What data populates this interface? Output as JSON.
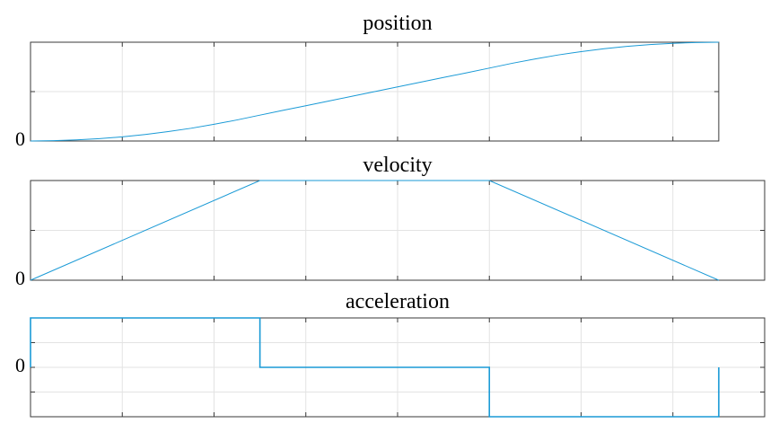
{
  "colors": {
    "line": "#1a9ad6",
    "frame": "#3a3a3a",
    "grid": "#e3e3e3"
  },
  "chart_data": [
    {
      "type": "line",
      "title": "position",
      "xlim": [
        0,
        7.5
      ],
      "ylim": [
        0,
        1
      ],
      "xticks": [
        1,
        2,
        3,
        4,
        5,
        6,
        7
      ],
      "yticks": [
        0,
        0.5,
        1
      ],
      "ytick_labels": [
        {
          "value": 0,
          "label": "0"
        }
      ],
      "grid": true,
      "series": [
        {
          "x": [
            0,
            0.25,
            0.5,
            0.75,
            1,
            1.25,
            1.5,
            1.75,
            2,
            2.25,
            2.5,
            2.75,
            3,
            3.25,
            3.5,
            3.75,
            4,
            4.25,
            4.5,
            4.75,
            5,
            5.25,
            5.5,
            5.75,
            6,
            6.25,
            6.5,
            6.75,
            7,
            7.25,
            7.5
          ],
          "y": [
            0,
            0.003,
            0.011,
            0.024,
            0.042,
            0.066,
            0.095,
            0.129,
            0.169,
            0.213,
            0.262,
            0.31,
            0.357,
            0.405,
            0.452,
            0.5,
            0.548,
            0.595,
            0.643,
            0.69,
            0.738,
            0.787,
            0.831,
            0.871,
            0.905,
            0.934,
            0.958,
            0.976,
            0.989,
            0.997,
            1.0
          ]
        }
      ]
    },
    {
      "type": "line",
      "title": "velocity",
      "xlim": [
        0,
        8
      ],
      "ylim": [
        0,
        1
      ],
      "xticks": [
        1,
        2,
        3,
        4,
        5,
        6,
        7
      ],
      "yticks": [
        0,
        0.5,
        1
      ],
      "ytick_labels": [
        {
          "value": 0,
          "label": "0"
        }
      ],
      "grid": true,
      "series": [
        {
          "x": [
            0,
            2.5,
            5,
            7.5
          ],
          "y": [
            0,
            1,
            1,
            0
          ]
        }
      ]
    },
    {
      "type": "line",
      "title": "acceleration",
      "xlim": [
        0,
        8
      ],
      "ylim": [
        -1,
        1
      ],
      "xticks": [
        1,
        2,
        3,
        4,
        5,
        6,
        7
      ],
      "yticks": [
        -1,
        -0.5,
        0,
        0.5,
        1
      ],
      "ytick_labels": [
        {
          "value": 0,
          "label": "0"
        }
      ],
      "grid": true,
      "series": [
        {
          "x": [
            0,
            0,
            2.5,
            2.5,
            5,
            5,
            7.5,
            7.5
          ],
          "y": [
            0,
            1,
            1,
            0,
            0,
            -1,
            -1,
            0
          ]
        }
      ]
    }
  ]
}
